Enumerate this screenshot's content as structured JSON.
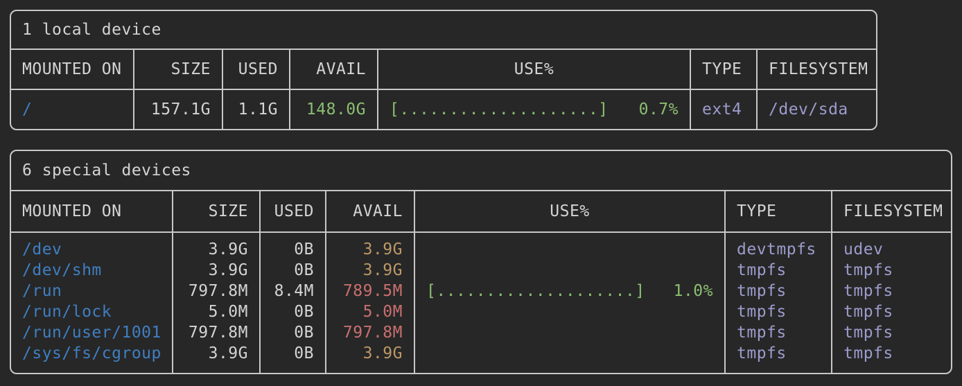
{
  "colors": {
    "bg": "#272727",
    "border": "#c8c8c8",
    "text": "#d4d4d4",
    "blue": "#3f7fc1",
    "green": "#8cbf72",
    "yellow": "#bd9866",
    "red": "#ca6f6f",
    "purple": "#9c9ccd"
  },
  "tables": [
    {
      "title": "1 local device",
      "columns": [
        "MOUNTED ON",
        "SIZE",
        "USED",
        "AVAIL",
        "USE%",
        "TYPE",
        "FILESYSTEM"
      ],
      "rows": [
        {
          "mounted_on": "/",
          "size": "157.1G",
          "used": "1.1G",
          "avail": "148.0G",
          "avail_level": "green",
          "bar": "[....................]",
          "use_pct": "0.7%",
          "type": "ext4",
          "filesystem": "/dev/sda"
        }
      ]
    },
    {
      "title": "6 special devices",
      "columns": [
        "MOUNTED ON",
        "SIZE",
        "USED",
        "AVAIL",
        "USE%",
        "TYPE",
        "FILESYSTEM"
      ],
      "rows": [
        {
          "mounted_on": "/dev",
          "size": "3.9G",
          "used": "0B",
          "avail": "3.9G",
          "avail_level": "yellow",
          "bar": "",
          "use_pct": "",
          "type": "devtmpfs",
          "filesystem": "udev"
        },
        {
          "mounted_on": "/dev/shm",
          "size": "3.9G",
          "used": "0B",
          "avail": "3.9G",
          "avail_level": "yellow",
          "bar": "",
          "use_pct": "",
          "type": "tmpfs",
          "filesystem": "tmpfs"
        },
        {
          "mounted_on": "/run",
          "size": "797.8M",
          "used": "8.4M",
          "avail": "789.5M",
          "avail_level": "red",
          "bar": "[....................]",
          "use_pct": "1.0%",
          "type": "tmpfs",
          "filesystem": "tmpfs"
        },
        {
          "mounted_on": "/run/lock",
          "size": "5.0M",
          "used": "0B",
          "avail": "5.0M",
          "avail_level": "red",
          "bar": "",
          "use_pct": "",
          "type": "tmpfs",
          "filesystem": "tmpfs"
        },
        {
          "mounted_on": "/run/user/1001",
          "size": "797.8M",
          "used": "0B",
          "avail": "797.8M",
          "avail_level": "red",
          "bar": "",
          "use_pct": "",
          "type": "tmpfs",
          "filesystem": "tmpfs"
        },
        {
          "mounted_on": "/sys/fs/cgroup",
          "size": "3.9G",
          "used": "0B",
          "avail": "3.9G",
          "avail_level": "yellow",
          "bar": "",
          "use_pct": "",
          "type": "tmpfs",
          "filesystem": "tmpfs"
        }
      ]
    }
  ]
}
